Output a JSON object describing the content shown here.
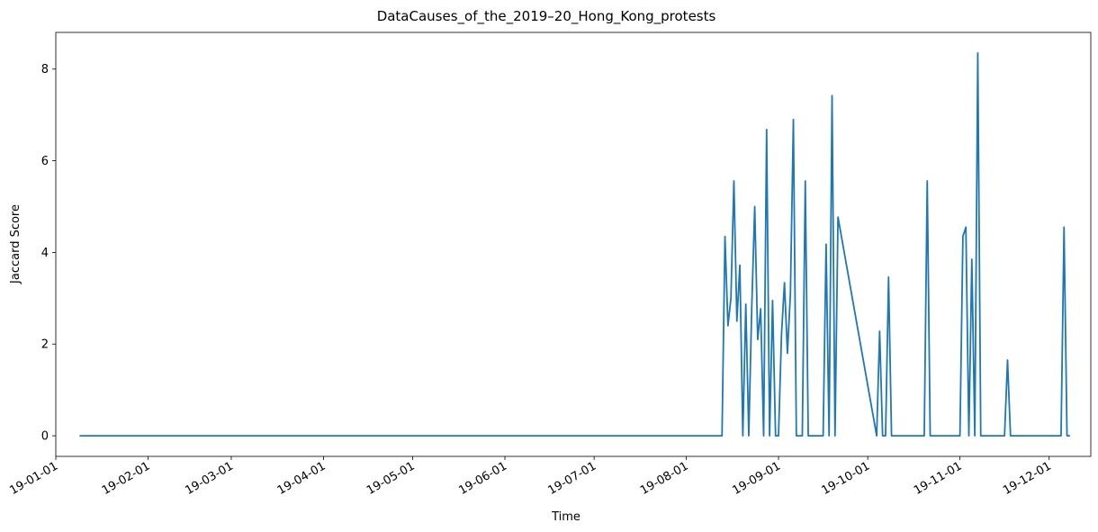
{
  "chart_data": {
    "type": "line",
    "title": "DataCauses_of_the_2019–20_Hong_Kong_protests",
    "xlabel": "Time",
    "ylabel": "Jaccard Score",
    "xlim": [
      "2019-01-01",
      "2019-12-15"
    ],
    "ylim": [
      -0.45,
      8.8
    ],
    "yticks": [
      0,
      2,
      4,
      6,
      8
    ],
    "xticks": [
      {
        "date": "2019-01-01",
        "label": "19-01-01"
      },
      {
        "date": "2019-02-01",
        "label": "19-02-01"
      },
      {
        "date": "2019-03-01",
        "label": "19-03-01"
      },
      {
        "date": "2019-04-01",
        "label": "19-04-01"
      },
      {
        "date": "2019-05-01",
        "label": "19-05-01"
      },
      {
        "date": "2019-06-01",
        "label": "19-06-01"
      },
      {
        "date": "2019-07-01",
        "label": "19-07-01"
      },
      {
        "date": "2019-08-01",
        "label": "19-08-01"
      },
      {
        "date": "2019-09-01",
        "label": "19-09-01"
      },
      {
        "date": "2019-10-01",
        "label": "19-10-01"
      },
      {
        "date": "2019-11-01",
        "label": "19-11-01"
      },
      {
        "date": "2019-12-01",
        "label": "19-12-01"
      }
    ],
    "grid": false,
    "line_color": "#1f77b4",
    "series": [
      {
        "x": [
          "2019-01-09",
          "2019-08-13",
          "2019-08-14",
          "2019-08-15",
          "2019-08-16",
          "2019-08-17",
          "2019-08-18",
          "2019-08-19",
          "2019-08-20",
          "2019-08-21",
          "2019-08-22",
          "2019-08-23",
          "2019-08-24",
          "2019-08-25",
          "2019-08-26",
          "2019-08-27",
          "2019-08-28",
          "2019-08-29",
          "2019-08-30",
          "2019-08-31",
          "2019-09-01",
          "2019-09-02",
          "2019-09-03",
          "2019-09-04",
          "2019-09-05",
          "2019-09-06",
          "2019-09-07",
          "2019-09-08",
          "2019-09-09",
          "2019-09-10",
          "2019-09-11",
          "2019-09-16",
          "2019-09-17",
          "2019-09-18",
          "2019-09-19",
          "2019-09-20",
          "2019-09-21",
          "2019-10-04",
          "2019-10-05",
          "2019-10-06",
          "2019-10-07",
          "2019-10-08",
          "2019-10-09",
          "2019-10-20",
          "2019-10-21",
          "2019-10-22",
          "2019-11-01",
          "2019-11-02",
          "2019-11-03",
          "2019-11-04",
          "2019-11-05",
          "2019-11-06",
          "2019-11-07",
          "2019-11-08",
          "2019-11-16",
          "2019-11-17",
          "2019-11-18",
          "2019-12-05",
          "2019-12-06",
          "2019-12-07",
          "2019-12-08"
        ],
        "y": [
          0,
          0,
          4.35,
          2.4,
          3.0,
          5.56,
          2.5,
          3.72,
          0,
          2.87,
          0,
          2.8,
          5.0,
          2.1,
          2.77,
          0,
          6.68,
          0,
          2.95,
          0,
          0,
          2.2,
          3.34,
          1.8,
          3.1,
          6.9,
          0,
          0,
          0,
          5.56,
          0,
          0,
          4.18,
          0,
          7.42,
          0,
          4.77,
          0,
          2.28,
          0,
          0,
          3.46,
          0,
          0,
          5.56,
          0,
          0,
          4.35,
          4.55,
          0,
          3.85,
          0,
          8.35,
          0,
          0,
          1.65,
          0,
          0,
          4.55,
          0,
          0
        ]
      }
    ]
  }
}
